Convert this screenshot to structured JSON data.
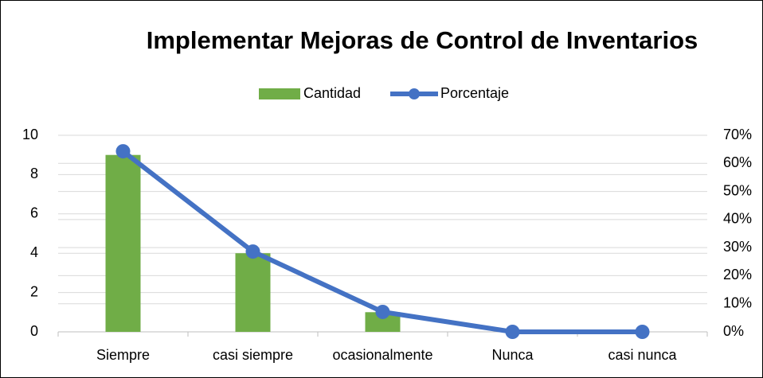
{
  "chart_data": {
    "type": "bar",
    "title": "Implementar Mejoras de Control de Inventarios",
    "categories": [
      "Siempre",
      "casi siempre",
      "ocasionalmente",
      "Nunca",
      "casi nunca"
    ],
    "series": [
      {
        "name": "Cantidad",
        "type": "bar",
        "axis": "y",
        "color": "#70ad47",
        "values": [
          9,
          4,
          1,
          0,
          0
        ]
      },
      {
        "name": "Porcentaje",
        "type": "line",
        "axis": "y2",
        "color": "#4472c4",
        "values": [
          64.3,
          28.6,
          7.1,
          0,
          0
        ]
      }
    ],
    "ylim": [
      0,
      10
    ],
    "yticks": [
      0,
      2,
      4,
      6,
      8,
      10
    ],
    "y2lim": [
      0,
      70
    ],
    "y2ticks": [
      {
        "value": 0,
        "label": "0%"
      },
      {
        "value": 10,
        "label": "10%"
      },
      {
        "value": 20,
        "label": "20%"
      },
      {
        "value": 30,
        "label": "30%"
      },
      {
        "value": 40,
        "label": "40%"
      },
      {
        "value": 50,
        "label": "50%"
      },
      {
        "value": 60,
        "label": "60%"
      },
      {
        "value": 70,
        "label": "70%"
      }
    ],
    "grid": true,
    "legend": "top"
  }
}
